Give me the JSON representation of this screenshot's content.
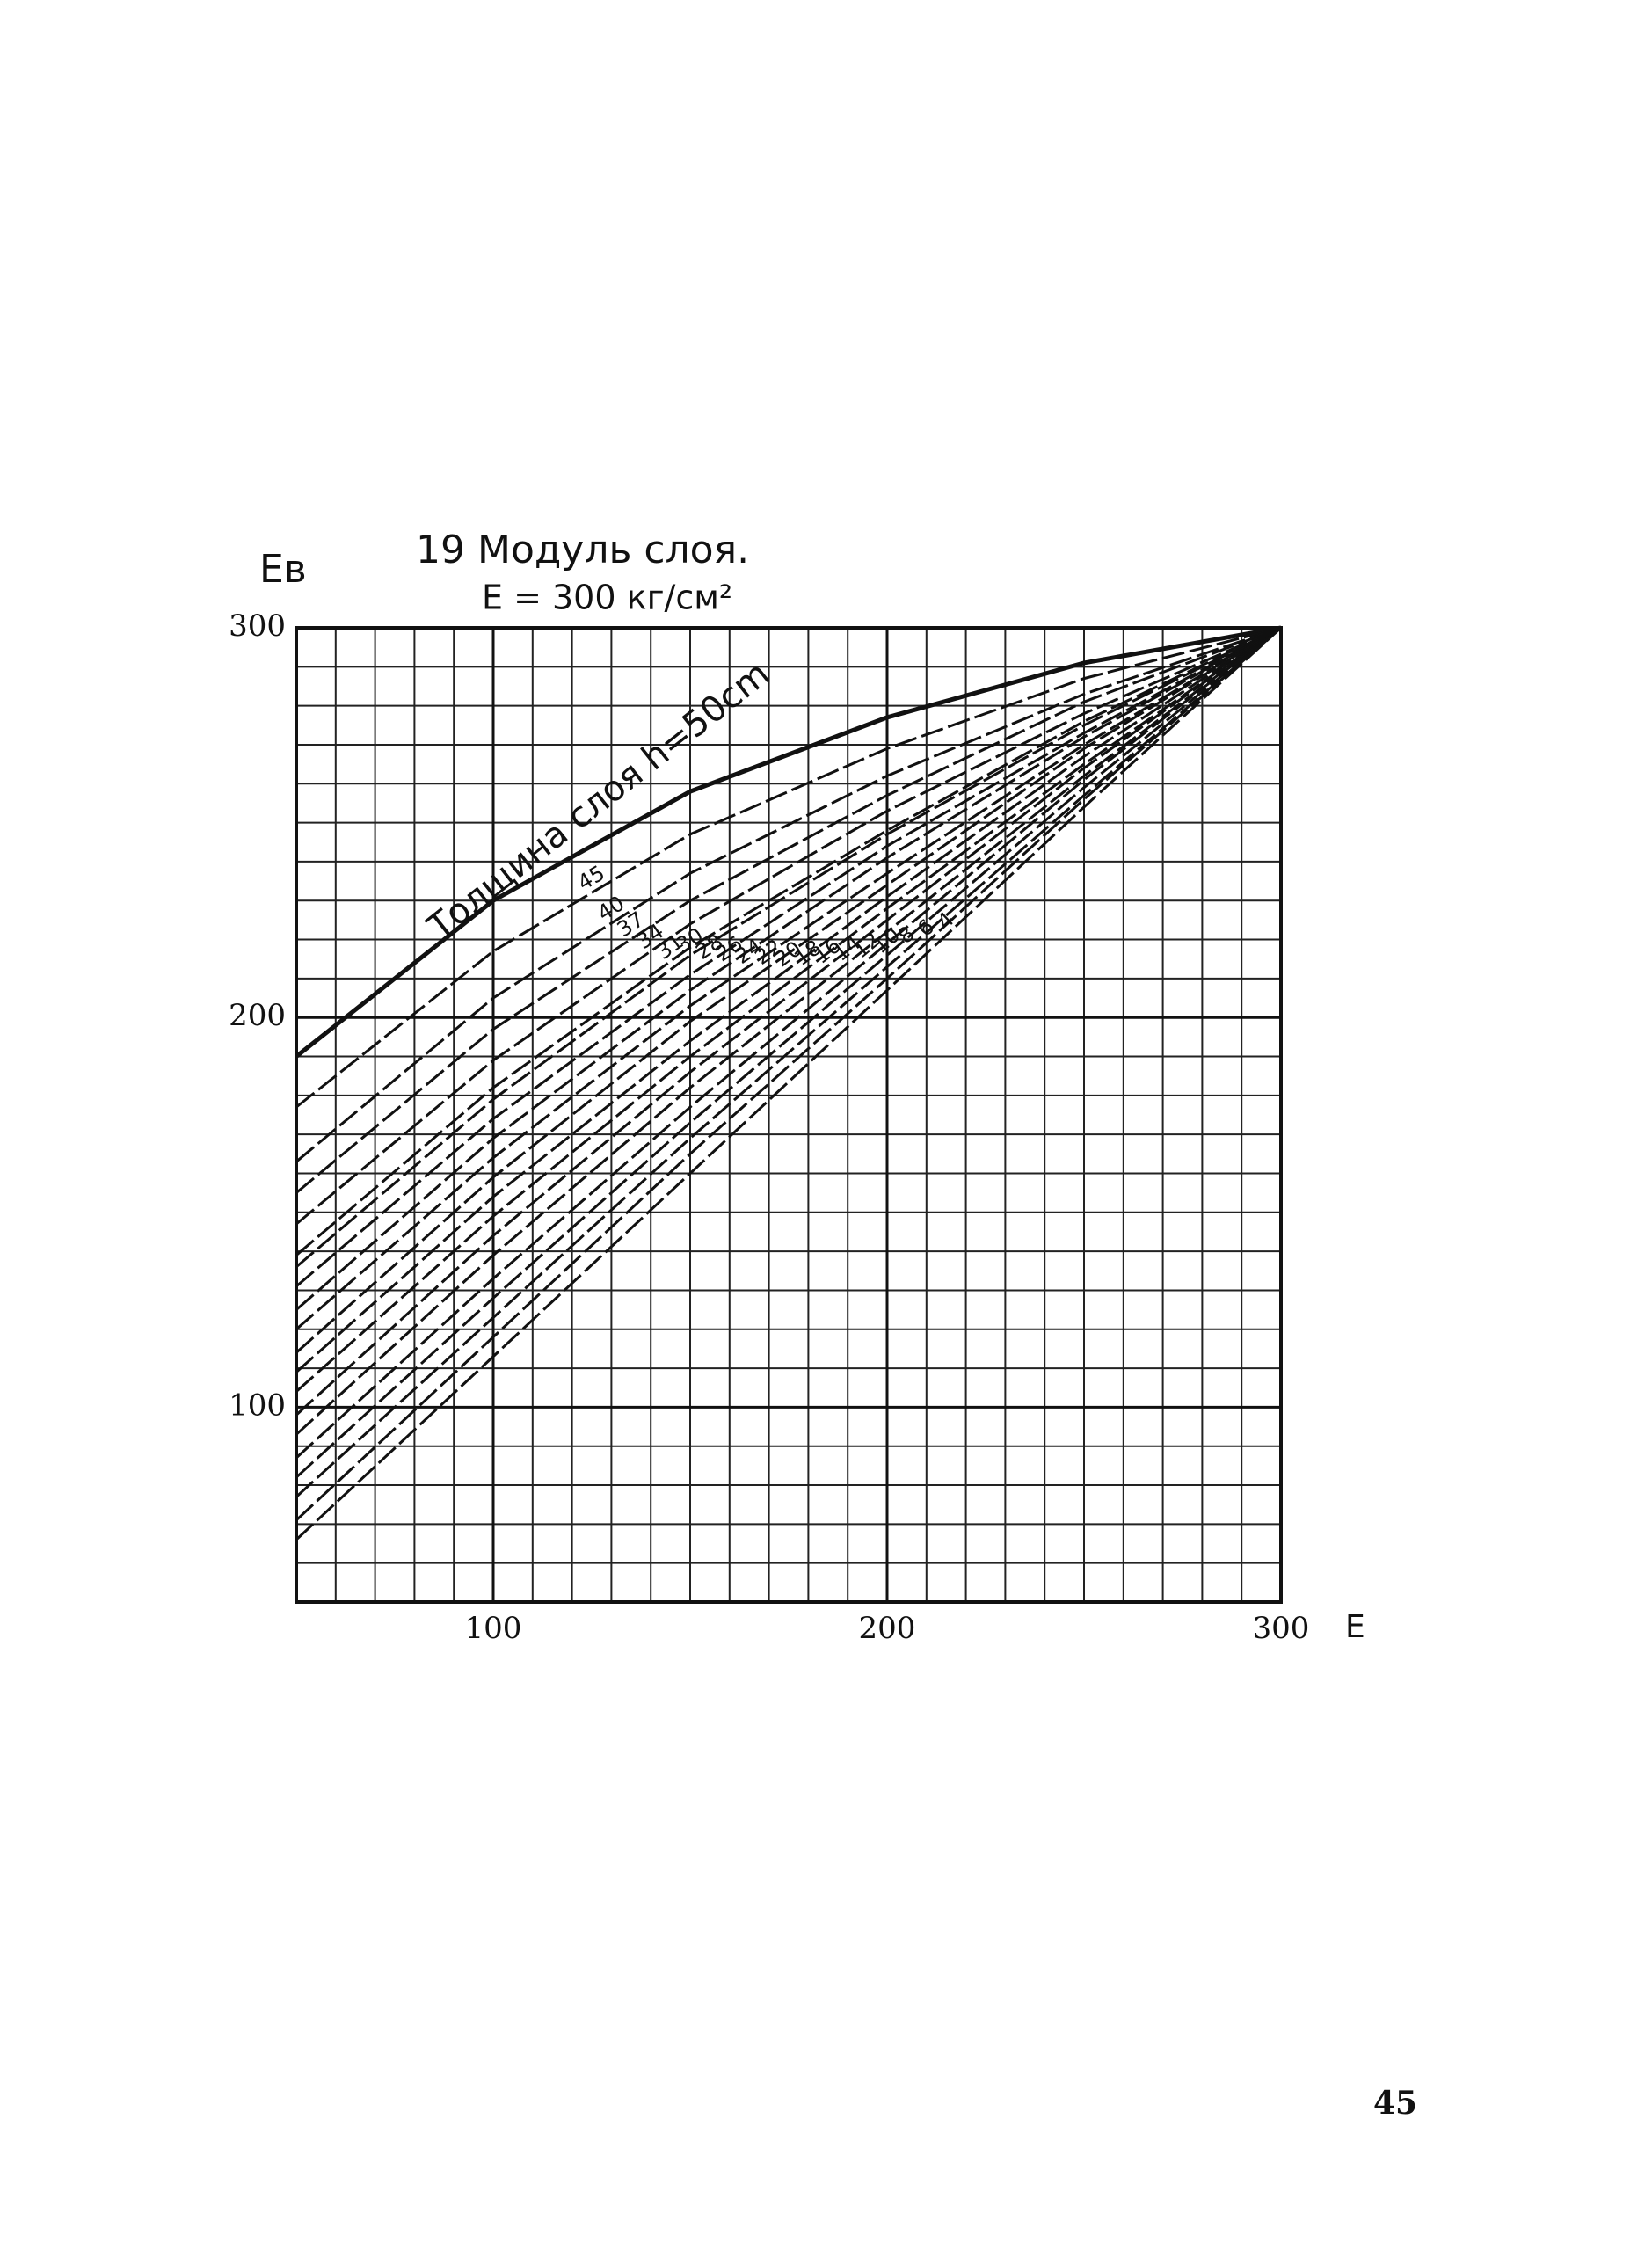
{
  "chart_data": {
    "type": "line",
    "title": "19 Модуль слоя.",
    "subtitle": "E = 300 кг/см²",
    "y_label": "Eв",
    "x_label": "E",
    "x": [
      50,
      100,
      150,
      200,
      250,
      300
    ],
    "xlim": [
      50,
      300
    ],
    "ylim": [
      50,
      300
    ],
    "xticks": [
      100,
      200,
      300
    ],
    "yticks": [
      100,
      200,
      300
    ],
    "grid": true,
    "color": "#111111",
    "series": [
      {
        "name": "Толщина слоя h=50cm",
        "values": [
          190,
          230,
          258,
          277,
          291,
          300
        ]
      },
      {
        "name": "45",
        "values": [
          177,
          217,
          247,
          269,
          287,
          300
        ]
      },
      {
        "name": "40",
        "values": [
          163,
          205,
          237,
          262,
          283,
          300
        ]
      },
      {
        "name": "37",
        "values": [
          155,
          197,
          230,
          257,
          281,
          300
        ]
      },
      {
        "name": "34",
        "values": [
          147,
          189,
          224,
          253,
          278,
          300
        ]
      },
      {
        "name": "31",
        "values": [
          139,
          182,
          218,
          248,
          276,
          300
        ]
      },
      {
        "name": "30",
        "values": [
          136,
          179,
          216,
          247,
          275,
          300
        ]
      },
      {
        "name": "28",
        "values": [
          131,
          174,
          211,
          244,
          273,
          300
        ]
      },
      {
        "name": "26",
        "values": [
          125,
          169,
          207,
          241,
          272,
          300
        ]
      },
      {
        "name": "24",
        "values": [
          120,
          164,
          203,
          237,
          270,
          300
        ]
      },
      {
        "name": "22",
        "values": [
          114,
          159,
          199,
          234,
          269,
          300
        ]
      },
      {
        "name": "20",
        "values": [
          109,
          154,
          194,
          231,
          267,
          300
        ]
      },
      {
        "name": "18",
        "values": [
          104,
          149,
          190,
          228,
          265,
          300
        ]
      },
      {
        "name": "16",
        "values": [
          98,
          144,
          186,
          225,
          264,
          300
        ]
      },
      {
        "name": "14",
        "values": [
          93,
          139,
          182,
          222,
          262,
          300
        ]
      },
      {
        "name": "12",
        "values": [
          87,
          133,
          177,
          219,
          261,
          300
        ]
      },
      {
        "name": "10",
        "values": [
          82,
          128,
          173,
          216,
          259,
          300
        ]
      },
      {
        "name": "8",
        "values": [
          77,
          123,
          169,
          213,
          257,
          300
        ]
      },
      {
        "name": "6",
        "values": [
          71,
          118,
          165,
          210,
          256,
          300
        ]
      },
      {
        "name": "4",
        "values": [
          66,
          113,
          160,
          207,
          254,
          300
        ]
      }
    ]
  },
  "page_number": "45"
}
